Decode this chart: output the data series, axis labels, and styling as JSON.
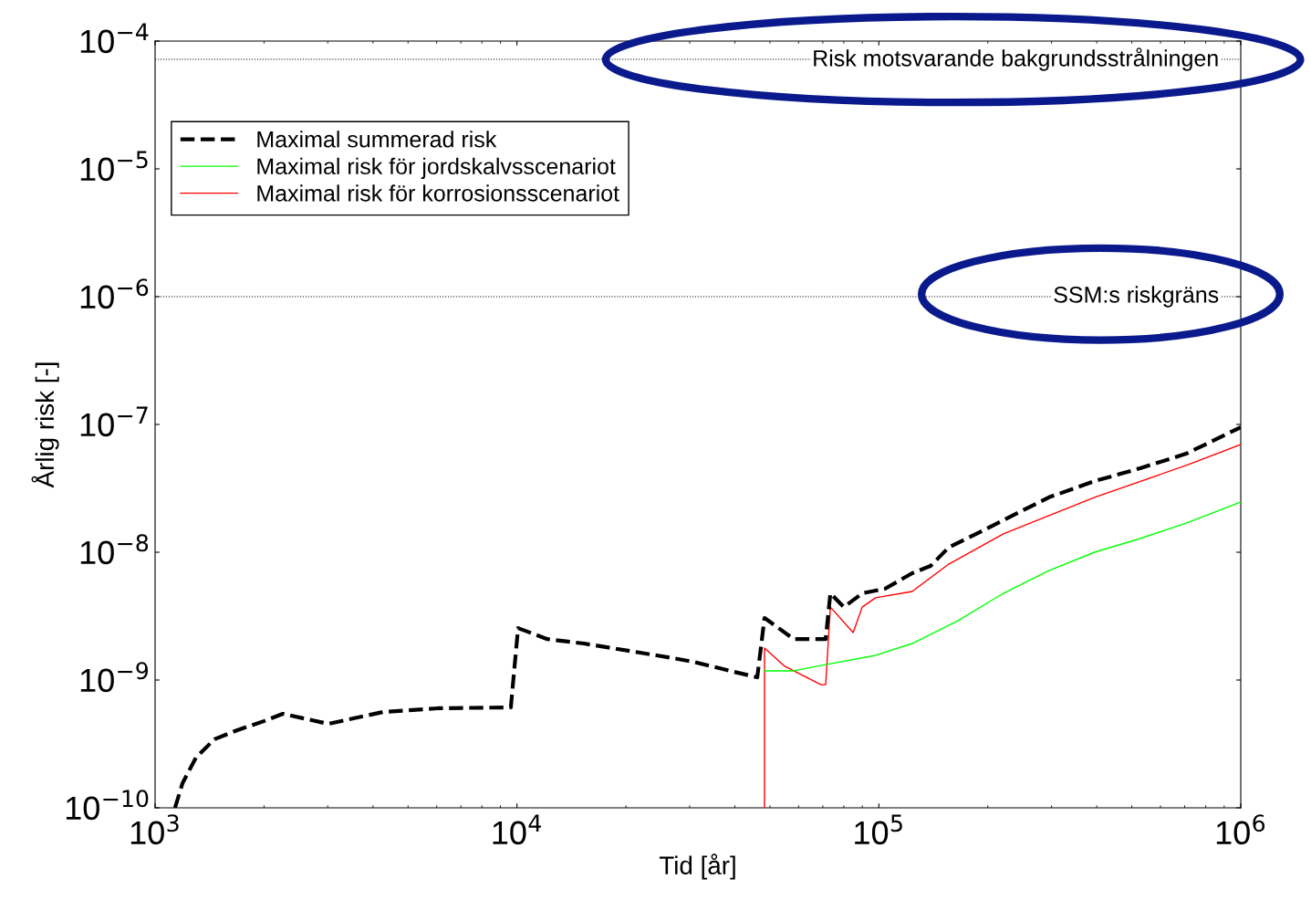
{
  "chart_data": {
    "type": "line",
    "xlabel": "Tid [år]",
    "ylabel": "Årlig risk [-]",
    "log": "xy",
    "grid": false,
    "legend": "top left",
    "xlim": [
      1000,
      1000000
    ],
    "ylim": [
      1e-10,
      0.0001
    ],
    "xticks": [
      {
        "value": 1000,
        "label": "10$^{3}$"
      },
      {
        "value": 10000,
        "label": "10$^{4}$"
      },
      {
        "value": 100000,
        "label": "10$^{5}$"
      },
      {
        "value": 1000000,
        "label": "10$^{6}$"
      }
    ],
    "yticks": [
      {
        "value": 1e-10,
        "label": "10$^{−10}$"
      },
      {
        "value": 1e-09,
        "label": "10$^{−9}$"
      },
      {
        "value": 1e-08,
        "label": "10$^{−8}$"
      },
      {
        "value": 1e-07,
        "label": "10$^{−7}$"
      },
      {
        "value": 1e-06,
        "label": "10$^{−6}$"
      },
      {
        "value": 1e-05,
        "label": "10$^{−5}$"
      },
      {
        "value": 0.0001,
        "label": "10$^{−4}$"
      }
    ],
    "ref_lines": [
      {
        "axis": "y",
        "value": 7.2e-05,
        "label": "Risk motsvarande bakgrundsstrålningen",
        "color": "#000000",
        "line_style": "dotted"
      },
      {
        "axis": "y",
        "value": 1e-06,
        "label": "SSM:s riskgräns",
        "color": "#000000",
        "line_style": "dotted"
      }
    ],
    "series": [
      {
        "name": "Maximal summerad risk",
        "color": "#000000",
        "line_style": "dashed",
        "x": [
          1135,
          1191,
          1297,
          1459,
          1687,
          2004,
          2254,
          3013,
          4266,
          6039,
          9616,
          10070,
          12130,
          15310,
          24320,
          30690,
          38730,
          46130,
          48310,
          58210,
          71290,
          73450,
          80000,
          89950,
          104000,
          123600,
          139000,
          156000,
          185800,
          220800,
          295100,
          394500,
          527200,
          706300,
          1000000
        ],
        "values": [
          1e-10,
          1.56e-10,
          2.47e-10,
          3.44e-10,
          4.05e-10,
          4.78e-10,
          5.44e-10,
          4.54e-10,
          5.62e-10,
          6.01e-10,
          6.11e-10,
          2.55e-09,
          2.09e-09,
          1.93e-09,
          1.56e-09,
          1.39e-09,
          1.18e-09,
          1.05e-09,
          3.06e-09,
          2.09e-09,
          2.09e-09,
          4.77e-09,
          3.72e-09,
          4.77e-09,
          5.18e-09,
          6.85e-09,
          7.82e-09,
          1.09e-08,
          1.39e-08,
          1.78e-08,
          2.69e-08,
          3.6e-08,
          4.54e-08,
          5.9e-08,
          9.5e-08
        ]
      },
      {
        "name": "Maximal risk för jordskalvsscenariot",
        "color": "#00ff00",
        "line_style": "solid",
        "x": [
          48310,
          58210,
          71290,
          97950,
          123600,
          165200,
          220800,
          295100,
          394500,
          527200,
          706300,
          1000000
        ],
        "values": [
          1.18e-09,
          1.18e-09,
          1.32e-09,
          1.56e-09,
          1.93e-09,
          2.91e-09,
          4.77e-09,
          7.19e-09,
          1e-08,
          1.28e-08,
          1.69e-08,
          2.47e-08
        ]
      },
      {
        "name": "Maximal risk för korrosionsscenariot",
        "color": "#ff0000",
        "line_style": "solid",
        "x": [
          48310,
          48310,
          54950,
          69180,
          71290,
          73450,
          84920,
          89950,
          97950,
          123600,
          156000,
          220800,
          394500,
          706300,
          1000000
        ],
        "values": [
          1e-10,
          1.78e-09,
          1.28e-09,
          9.2e-10,
          9.2e-10,
          3.72e-09,
          2.35e-09,
          3.72e-09,
          4.4e-09,
          4.93e-09,
          8.07e-09,
          1.39e-08,
          2.69e-08,
          4.78e-08,
          6.97e-08
        ]
      }
    ]
  }
}
